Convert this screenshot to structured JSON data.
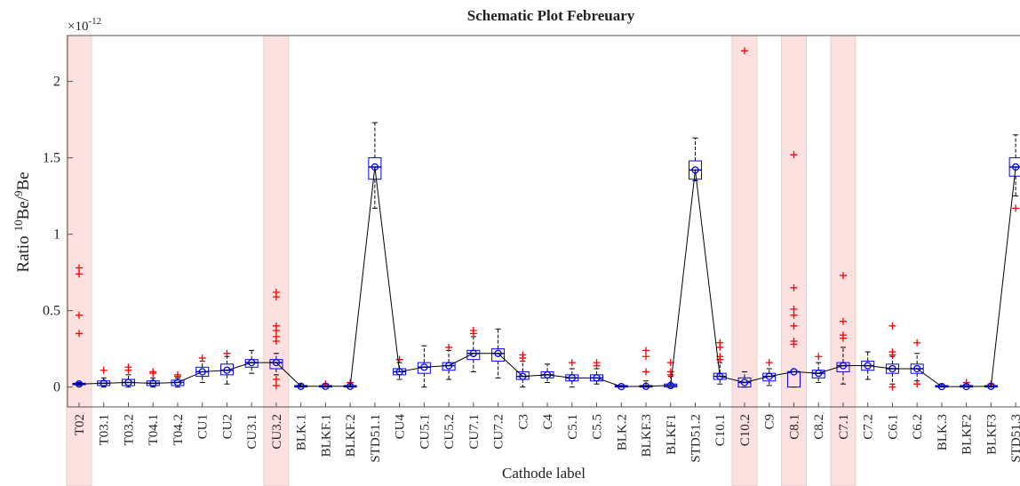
{
  "chart_data": {
    "type": "box",
    "title": "Schematic Plot Febreuary",
    "xlabel": "Cathode label",
    "ylabel_parts": [
      "Ratio",
      "10",
      "Be/",
      "9",
      "Be"
    ],
    "y_multiplier": {
      "base": "×10",
      "exponent": "-12"
    },
    "ylim": [
      -0.13,
      2.3
    ],
    "yticks": [
      0,
      0.5,
      1,
      1.5,
      2
    ],
    "box_color": "#0000ff",
    "flier_color": "#ff0000",
    "line_color": "#000000",
    "highlight_color": "#fde0e0",
    "categories": [
      "T02",
      "T03.1",
      "T03.2",
      "T04.1",
      "T04.2",
      "CU1",
      "CU2",
      "CU3.1",
      "CU3.2",
      "BLK.1",
      "BLKF.1",
      "BLKF.2",
      "STD51.1",
      "CU4",
      "CU5.1",
      "CU5.2",
      "CU7.1",
      "CU7.2",
      "C3",
      "C4",
      "C5.1",
      "C5.5",
      "BLK.2",
      "BLKF.3",
      "BLKF1",
      "STD51.2",
      "C10.1",
      "C10.2",
      "C9",
      "C8.1",
      "C8.2",
      "C7.1",
      "C7.2",
      "C6.1",
      "C6.2",
      "BLK.3",
      "BLKF2",
      "BLKF3",
      "STD51.3"
    ],
    "boxes": [
      {
        "median": 0.02,
        "q1": 0.015,
        "q3": 0.025,
        "whislo": 0.01,
        "whishi": 0.03,
        "fliers": [
          0.78,
          0.74,
          0.47,
          0.35
        ],
        "highlight": true
      },
      {
        "median": 0.025,
        "q1": 0.01,
        "q3": 0.04,
        "whislo": 0,
        "whishi": 0.06,
        "fliers": [
          0.11
        ]
      },
      {
        "median": 0.03,
        "q1": 0.01,
        "q3": 0.05,
        "whislo": 0,
        "whishi": 0.08,
        "fliers": [
          0.13,
          0.11
        ]
      },
      {
        "median": 0.025,
        "q1": 0.01,
        "q3": 0.04,
        "whislo": 0,
        "whishi": 0.06,
        "fliers": [
          0.1,
          0.09
        ]
      },
      {
        "median": 0.03,
        "q1": 0.01,
        "q3": 0.045,
        "whislo": 0,
        "whishi": 0.06,
        "fliers": [
          0.08,
          0.07
        ]
      },
      {
        "median": 0.1,
        "q1": 0.07,
        "q3": 0.13,
        "whislo": 0.03,
        "whishi": 0.17,
        "fliers": [
          0.19
        ]
      },
      {
        "median": 0.11,
        "q1": 0.08,
        "q3": 0.15,
        "whislo": 0.02,
        "whishi": 0.2,
        "fliers": [
          0.22
        ]
      },
      {
        "median": 0.16,
        "q1": 0.13,
        "q3": 0.18,
        "whislo": 0.09,
        "whishi": 0.24,
        "fliers": []
      },
      {
        "median": 0.16,
        "q1": 0.12,
        "q3": 0.18,
        "whislo": 0.08,
        "whishi": 0.22,
        "fliers": [
          0.62,
          0.59,
          0.4,
          0.37,
          0.33,
          0.3,
          0.05,
          0.01
        ],
        "highlight": true
      },
      {
        "median": 0.005,
        "q1": 0,
        "q3": 0.01,
        "whislo": 0,
        "whishi": 0.02,
        "fliers": []
      },
      {
        "median": 0.005,
        "q1": 0,
        "q3": 0.01,
        "whislo": 0,
        "whishi": 0.02,
        "fliers": [
          0.02
        ]
      },
      {
        "median": 0.005,
        "q1": 0,
        "q3": 0.01,
        "whislo": 0,
        "whishi": 0.02,
        "fliers": [
          0.03
        ]
      },
      {
        "median": 1.44,
        "q1": 1.36,
        "q3": 1.5,
        "whislo": 1.17,
        "whishi": 1.73,
        "fliers": []
      },
      {
        "median": 0.1,
        "q1": 0.08,
        "q3": 0.12,
        "whislo": 0.05,
        "whishi": 0.16,
        "fliers": [
          0.18
        ]
      },
      {
        "median": 0.13,
        "q1": 0.09,
        "q3": 0.16,
        "whislo": 0,
        "whishi": 0.27,
        "fliers": []
      },
      {
        "median": 0.14,
        "q1": 0.11,
        "q3": 0.16,
        "whislo": 0.05,
        "whishi": 0.24,
        "fliers": [
          0.26
        ]
      },
      {
        "median": 0.22,
        "q1": 0.18,
        "q3": 0.24,
        "whislo": 0.1,
        "whishi": 0.33,
        "fliers": [
          0.37,
          0.35
        ]
      },
      {
        "median": 0.22,
        "q1": 0.17,
        "q3": 0.25,
        "whislo": 0.06,
        "whishi": 0.38,
        "fliers": []
      },
      {
        "median": 0.07,
        "q1": 0.05,
        "q3": 0.1,
        "whislo": 0,
        "whishi": 0.17,
        "fliers": [
          0.21,
          0.19
        ]
      },
      {
        "median": 0.08,
        "q1": 0.06,
        "q3": 0.1,
        "whislo": 0.03,
        "whishi": 0.15,
        "fliers": []
      },
      {
        "median": 0.06,
        "q1": 0.04,
        "q3": 0.08,
        "whislo": 0,
        "whishi": 0.12,
        "fliers": [
          0.16
        ]
      },
      {
        "median": 0.06,
        "q1": 0.04,
        "q3": 0.08,
        "whislo": 0.02,
        "whishi": 0.12,
        "fliers": [
          0.16,
          0.14
        ]
      },
      {
        "median": 0.003,
        "q1": 0,
        "q3": 0.01,
        "whislo": 0,
        "whishi": 0.01,
        "fliers": []
      },
      {
        "median": 0.005,
        "q1": 0,
        "q3": 0.01,
        "whislo": 0,
        "whishi": 0.04,
        "fliers": [
          0.24,
          0.2,
          0.1
        ]
      },
      {
        "median": 0.01,
        "q1": 0,
        "q3": 0.02,
        "whislo": 0,
        "whishi": 0.07,
        "fliers": [
          0.16,
          0.1,
          0.08
        ]
      },
      {
        "median": 1.42,
        "q1": 1.36,
        "q3": 1.48,
        "whislo": 1.35,
        "whishi": 1.63,
        "fliers": []
      },
      {
        "median": 0.07,
        "q1": 0.05,
        "q3": 0.09,
        "whislo": 0.02,
        "whishi": 0.16,
        "fliers": [
          0.29,
          0.26,
          0.2,
          0.18
        ]
      },
      {
        "median": 0.03,
        "q1": 0,
        "q3": 0.06,
        "whislo": 0,
        "whishi": 0.1,
        "fliers": [
          2.2
        ],
        "highlight": true
      },
      {
        "median": 0.07,
        "q1": 0.04,
        "q3": 0.09,
        "whislo": 0.01,
        "whishi": 0.12,
        "fliers": [
          0.16
        ]
      },
      {
        "median": 0.1,
        "q1": 0,
        "q3": 0.1,
        "whislo": 0,
        "whishi": 0.1,
        "fliers": [
          1.52,
          0.65,
          0.51,
          0.47,
          0.4,
          0.3,
          0.28
        ],
        "highlight": true
      },
      {
        "median": 0.09,
        "q1": 0.06,
        "q3": 0.11,
        "whislo": 0.03,
        "whishi": 0.16,
        "fliers": [
          0.2
        ]
      },
      {
        "median": 0.14,
        "q1": 0.1,
        "q3": 0.16,
        "whislo": 0.02,
        "whishi": 0.26,
        "fliers": [
          0.73,
          0.43,
          0.34,
          0.32
        ],
        "highlight": true
      },
      {
        "median": 0.14,
        "q1": 0.11,
        "q3": 0.17,
        "whislo": 0.05,
        "whishi": 0.23,
        "fliers": []
      },
      {
        "median": 0.12,
        "q1": 0.09,
        "q3": 0.15,
        "whislo": 0.02,
        "whishi": 0.2,
        "fliers": [
          0.4,
          0.23,
          0.21,
          0
        ]
      },
      {
        "median": 0.12,
        "q1": 0.09,
        "q3": 0.15,
        "whislo": 0.04,
        "whishi": 0.22,
        "fliers": [
          0.29,
          0.02
        ]
      },
      {
        "median": 0.003,
        "q1": 0,
        "q3": 0.01,
        "whislo": 0,
        "whishi": 0.02,
        "fliers": []
      },
      {
        "median": 0.003,
        "q1": 0,
        "q3": 0.01,
        "whislo": 0,
        "whishi": 0.02,
        "fliers": [
          0.03
        ]
      },
      {
        "median": 0.005,
        "q1": 0,
        "q3": 0.01,
        "whislo": 0,
        "whishi": 0.02,
        "fliers": [
          0.02
        ]
      },
      {
        "median": 1.44,
        "q1": 1.38,
        "q3": 1.5,
        "whislo": 1.25,
        "whishi": 1.65,
        "fliers": [
          1.17
        ]
      }
    ]
  }
}
